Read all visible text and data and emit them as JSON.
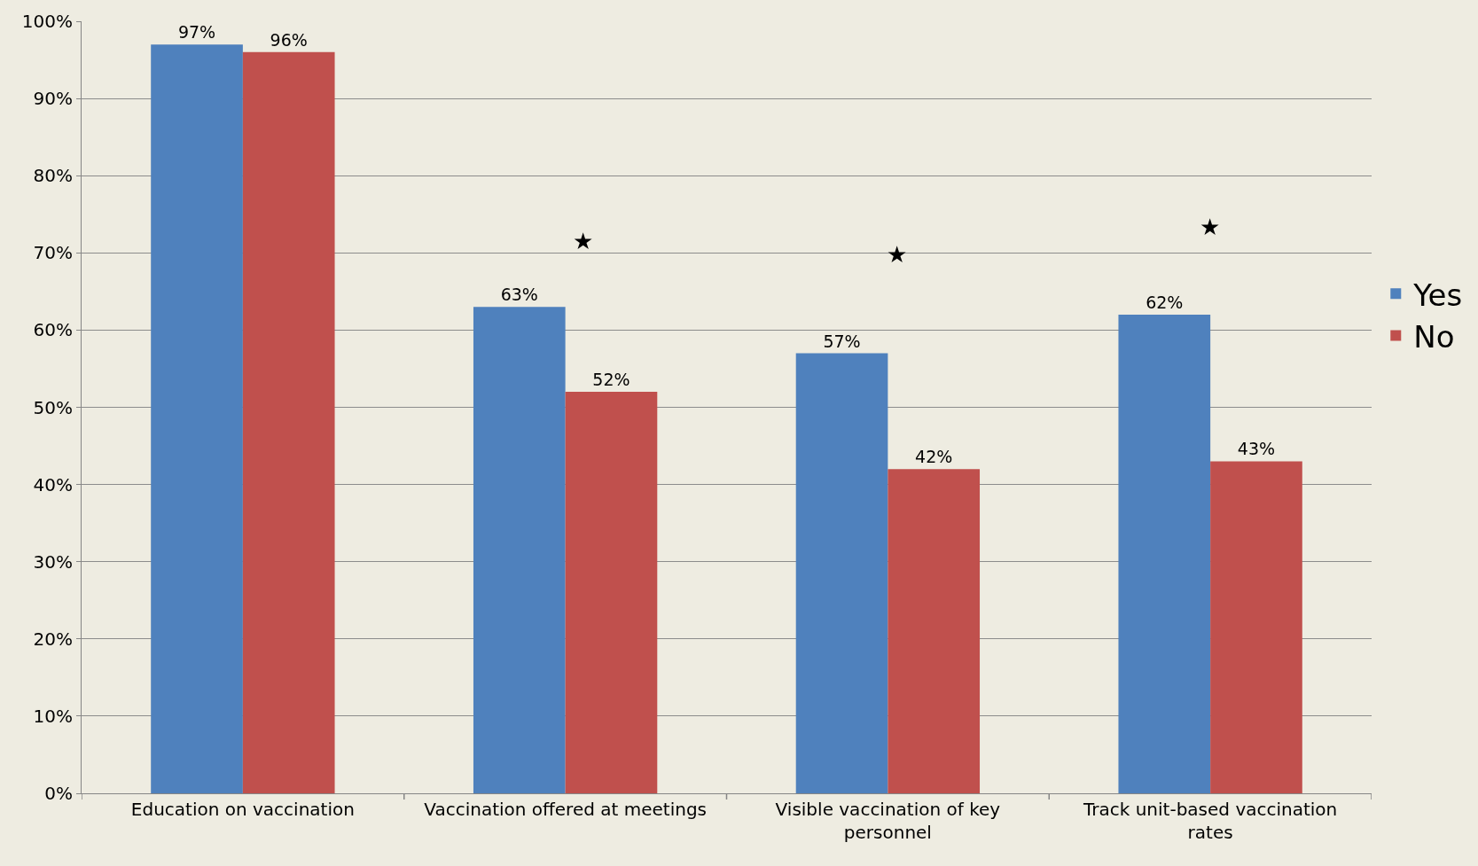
{
  "chart_data": {
    "type": "bar",
    "categories": [
      "Education on vaccination",
      "Vaccination offered at meetings",
      "Visible vaccination of key personnel",
      "Track unit-based vaccination rates"
    ],
    "series": [
      {
        "name": "Yes",
        "color": "#4f81bd",
        "values": [
          97,
          63,
          57,
          62
        ],
        "value_labels": [
          "97%",
          "63%",
          "57%",
          "62%"
        ]
      },
      {
        "name": "No",
        "color": "#c0504d",
        "values": [
          96,
          52,
          42,
          43
        ],
        "value_labels": [
          "96%",
          "52%",
          "42%",
          "43%"
        ]
      }
    ],
    "ylim": [
      0,
      100
    ],
    "yticks": [
      {
        "value": 0,
        "label": "0%"
      },
      {
        "value": 10,
        "label": "10%"
      },
      {
        "value": 20,
        "label": "20%"
      },
      {
        "value": 30,
        "label": "30%"
      },
      {
        "value": 40,
        "label": "40%"
      },
      {
        "value": 50,
        "label": "50%"
      },
      {
        "value": 60,
        "label": "60%"
      },
      {
        "value": 70,
        "label": "70%"
      },
      {
        "value": 80,
        "label": "80%"
      },
      {
        "value": 90,
        "label": "90%"
      },
      {
        "value": 100,
        "label": "100%"
      }
    ],
    "grid": "y",
    "legend": "right",
    "annotations": [
      "★",
      "★",
      "★"
    ]
  }
}
